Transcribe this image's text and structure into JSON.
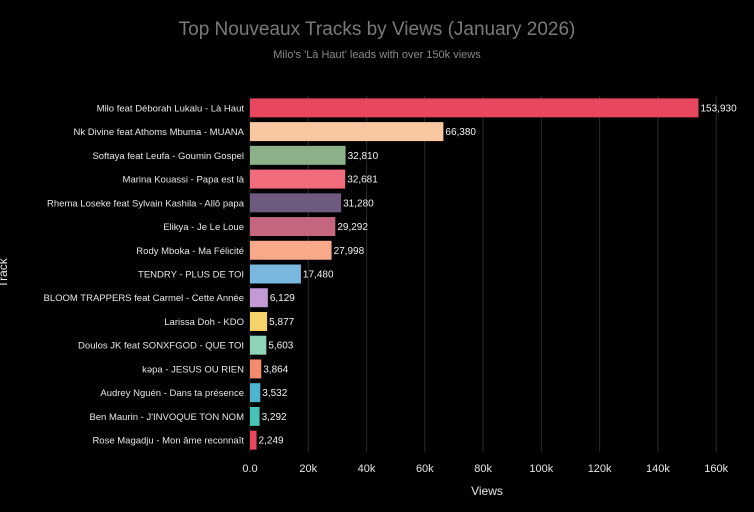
{
  "chart_data": {
    "type": "bar",
    "orientation": "horizontal",
    "title": "Top Nouveaux Tracks by Views (January 2026)",
    "subtitle": "Milo's 'Là Haut' leads with over 150k views",
    "xlabel": "Views",
    "ylabel": "Track",
    "xlim": [
      0,
      162000
    ],
    "x_ticks": [
      0,
      20000,
      40000,
      60000,
      80000,
      100000,
      120000,
      140000,
      160000
    ],
    "x_tick_labels": [
      "0.0",
      "20k",
      "40k",
      "60k",
      "80k",
      "100k",
      "120k",
      "140k",
      "160k"
    ],
    "grid": true,
    "legend": "none",
    "categories": [
      "Milo feat Déborah Lukalu - Là Haut",
      "Nk Divine feat Athoms Mbuma - MUANA",
      "Softaya feat Leufa - Goumin Gospel",
      "Marina Kouassi - Papa est là",
      "Rhema Loseke feat Sylvain Kashila - Allô papa",
      "Elikya - Je Le Loue",
      "Rody Mboka - Ma Félicité",
      "TENDRY - PLUS DE TOI",
      "BLOOM TRAPPERS feat Carmel - Cette Année",
      "Larissa Doh - KDO",
      "Doulos JK feat SONXFGOD - QUE TOI",
      "kəpa - JESUS OU RIEN",
      "Audrey Nguén - Dans ta présence",
      "Ben Maurin - J'INVOQUE TON NOM",
      "Rose Magadju - Mon âme reconnaît"
    ],
    "values": [
      153930,
      66380,
      32810,
      32681,
      31280,
      29292,
      27998,
      17480,
      6129,
      5877,
      5603,
      3864,
      3532,
      3292,
      2249
    ],
    "value_labels": [
      "153,930",
      "66,380",
      "32,810",
      "32,681",
      "31,280",
      "29,292",
      "27,998",
      "17,480",
      "6,129",
      "5,877",
      "5,603",
      "3,864",
      "3,532",
      "3,292",
      "2,249"
    ],
    "colors": [
      "#e8475f",
      "#f9c8a0",
      "#8bb08a",
      "#f06b7b",
      "#6e5a7e",
      "#c4667d",
      "#f7a98a",
      "#7ab8e0",
      "#c49ad6",
      "#f5d36b",
      "#8fd4b8",
      "#f58a6e",
      "#4fb3cf",
      "#48c2b4",
      "#e8475f"
    ]
  }
}
